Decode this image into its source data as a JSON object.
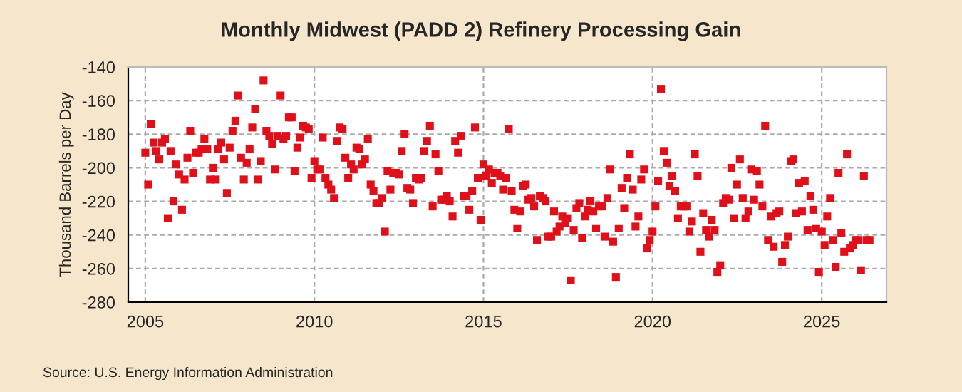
{
  "chart_data": {
    "type": "scatter",
    "title": "Monthly Midwest (PADD 2) Refinery Processing Gain",
    "ylabel": "Thousand Barrels per Day",
    "annotations": [
      "Source: U.S. Energy Information Administration"
    ],
    "x": [
      "2005-01",
      "2005-02",
      "2005-03",
      "2005-04",
      "2005-05",
      "2005-06",
      "2005-07",
      "2005-08",
      "2005-09",
      "2005-10",
      "2005-11",
      "2005-12",
      "2006-01",
      "2006-02",
      "2006-03",
      "2006-04",
      "2006-05",
      "2006-06",
      "2006-07",
      "2006-08",
      "2006-09",
      "2006-10",
      "2006-11",
      "2006-12",
      "2007-01",
      "2007-02",
      "2007-03",
      "2007-04",
      "2007-05",
      "2007-06",
      "2007-07",
      "2007-08",
      "2007-09",
      "2007-10",
      "2007-11",
      "2007-12",
      "2008-01",
      "2008-02",
      "2008-03",
      "2008-04",
      "2008-05",
      "2008-06",
      "2008-07",
      "2008-08",
      "2008-09",
      "2008-10",
      "2008-11",
      "2008-12",
      "2009-01",
      "2009-02",
      "2009-03",
      "2009-04",
      "2009-05",
      "2009-06",
      "2009-07",
      "2009-08",
      "2009-09",
      "2009-10",
      "2009-11",
      "2009-12",
      "2010-01",
      "2010-02",
      "2010-03",
      "2010-04",
      "2010-05",
      "2010-06",
      "2010-07",
      "2010-08",
      "2010-09",
      "2010-10",
      "2010-11",
      "2010-12",
      "2011-01",
      "2011-02",
      "2011-03",
      "2011-04",
      "2011-05",
      "2011-06",
      "2011-07",
      "2011-08",
      "2011-09",
      "2011-10",
      "2011-11",
      "2011-12",
      "2012-01",
      "2012-02",
      "2012-03",
      "2012-04",
      "2012-05",
      "2012-06",
      "2012-07",
      "2012-08",
      "2012-09",
      "2012-10",
      "2012-11",
      "2012-12",
      "2013-01",
      "2013-02",
      "2013-03",
      "2013-04",
      "2013-05",
      "2013-06",
      "2013-07",
      "2013-08",
      "2013-09",
      "2013-10",
      "2013-11",
      "2013-12",
      "2014-01",
      "2014-02",
      "2014-03",
      "2014-04",
      "2014-05",
      "2014-06",
      "2014-07",
      "2014-08",
      "2014-09",
      "2014-10",
      "2014-11",
      "2014-12",
      "2015-01",
      "2015-02",
      "2015-03",
      "2015-04",
      "2015-05",
      "2015-06",
      "2015-07",
      "2015-08",
      "2015-09",
      "2015-10",
      "2015-11",
      "2015-12",
      "2016-01",
      "2016-02",
      "2016-03",
      "2016-04",
      "2016-05",
      "2016-06",
      "2016-07",
      "2016-08",
      "2016-09",
      "2016-10",
      "2016-11",
      "2016-12",
      "2017-01",
      "2017-02",
      "2017-03",
      "2017-04",
      "2017-05",
      "2017-06",
      "2017-07",
      "2017-08",
      "2017-09",
      "2017-10",
      "2017-11",
      "2017-12",
      "2018-01",
      "2018-02",
      "2018-03",
      "2018-04",
      "2018-05",
      "2018-06",
      "2018-07",
      "2018-08",
      "2018-09",
      "2018-10",
      "2018-11",
      "2018-12",
      "2019-01",
      "2019-02",
      "2019-03",
      "2019-04",
      "2019-05",
      "2019-06",
      "2019-07",
      "2019-08",
      "2019-09",
      "2019-10",
      "2019-11",
      "2019-12",
      "2020-01",
      "2020-02",
      "2020-03",
      "2020-04",
      "2020-05",
      "2020-06",
      "2020-07",
      "2020-08",
      "2020-09",
      "2020-10",
      "2020-11",
      "2020-12",
      "2021-01",
      "2021-02",
      "2021-03",
      "2021-04",
      "2021-05",
      "2021-06",
      "2021-07",
      "2021-08",
      "2021-09",
      "2021-10",
      "2021-11",
      "2021-12",
      "2022-01",
      "2022-02",
      "2022-03",
      "2022-04",
      "2022-05",
      "2022-06",
      "2022-07",
      "2022-08",
      "2022-09",
      "2022-10",
      "2022-11",
      "2022-12",
      "2023-01",
      "2023-02",
      "2023-03",
      "2023-04",
      "2023-05",
      "2023-06",
      "2023-07",
      "2023-08",
      "2023-09",
      "2023-10",
      "2023-11",
      "2023-12",
      "2024-01",
      "2024-02",
      "2024-03",
      "2024-04",
      "2024-05",
      "2024-06",
      "2024-07",
      "2024-08",
      "2024-09",
      "2024-10",
      "2024-11",
      "2024-12",
      "2025-01",
      "2025-02",
      "2025-03",
      "2025-04",
      "2025-05",
      "2025-06",
      "2025-07",
      "2025-08",
      "2025-09",
      "2025-10",
      "2025-11",
      "2025-12",
      "2026-01",
      "2026-02",
      "2026-03",
      "2026-04",
      "2026-05",
      "2026-06"
    ],
    "series": [
      {
        "color": "#e0101a",
        "values": [
          -191,
          -210,
          -174,
          -185,
          -190,
          -195,
          -185,
          -183,
          -230,
          -190,
          -220,
          -198,
          -204,
          -225,
          -207,
          -194,
          -178,
          -203,
          -191,
          -191,
          -189,
          -183,
          -189,
          -207,
          -200,
          -207,
          -189,
          -185,
          -195,
          -215,
          -188,
          -178,
          -172,
          -157,
          -194,
          -207,
          -197,
          -189,
          -176,
          -165,
          -207,
          -196,
          -148,
          -178,
          -181,
          -186,
          -201,
          -181,
          -157,
          -183,
          -181,
          -170,
          -170,
          -202,
          -188,
          -182,
          -175,
          -176,
          -177,
          -206,
          -196,
          -201,
          -201,
          -182,
          -206,
          -210,
          -213,
          -218,
          -184,
          -176,
          -177,
          -194,
          -206,
          -198,
          -201,
          -188,
          -189,
          -198,
          -195,
          -183,
          -210,
          -214,
          -221,
          -221,
          -218,
          -238,
          -202,
          -213,
          -203,
          -203,
          -204,
          -190,
          -180,
          -212,
          -213,
          -221,
          -206,
          -207,
          -206,
          -190,
          -184,
          -175,
          -223,
          -192,
          -202,
          -219,
          -219,
          -217,
          -220,
          -229,
          -184,
          -191,
          -181,
          -217,
          -217,
          -225,
          -214,
          -176,
          -206,
          -231,
          -198,
          -205,
          -201,
          -209,
          -203,
          -203,
          -205,
          -213,
          -206,
          -177,
          -214,
          -225,
          -236,
          -226,
          -211,
          -210,
          -219,
          -218,
          -223,
          -243,
          -217,
          -218,
          -220,
          -241,
          -241,
          -226,
          -238,
          -235,
          -229,
          -233,
          -230,
          -267,
          -237,
          -224,
          -221,
          -242,
          -229,
          -225,
          -220,
          -226,
          -236,
          -223,
          -223,
          -241,
          -218,
          -201,
          -244,
          -265,
          -236,
          -212,
          -224,
          -206,
          -192,
          -213,
          -235,
          -229,
          -207,
          -201,
          -248,
          -243,
          -238,
          -223,
          -208,
          -153,
          -190,
          -197,
          -211,
          -205,
          -214,
          -230,
          -223,
          -223,
          -223,
          -238,
          -232,
          -192,
          -205,
          -250,
          -227,
          -237,
          -241,
          -231,
          -237,
          -262,
          -258,
          -221,
          -218,
          -219,
          -200,
          -230,
          -210,
          -195,
          -218,
          -230,
          -226,
          -201,
          -219,
          -202,
          -210,
          -223,
          -175,
          -243,
          -229,
          -247,
          -227,
          -226,
          -256,
          -246,
          -241,
          -196,
          -195,
          -227,
          -209,
          -226,
          -208,
          -237,
          -217,
          -225,
          -236,
          -262,
          -238,
          -246,
          -229,
          -218,
          -243,
          -259,
          -203,
          -239,
          -250,
          -192,
          -248,
          -246,
          -243,
          -243,
          -261,
          -205,
          -243,
          -243
        ]
      }
    ],
    "marker": "square",
    "xlim": [
      "2004-07",
      "2026-12"
    ],
    "xticks": [
      {
        "value": "2005-01",
        "label": "2005"
      },
      {
        "value": "2010-01",
        "label": "2010"
      },
      {
        "value": "2015-01",
        "label": "2015"
      },
      {
        "value": "2020-01",
        "label": "2020"
      },
      {
        "value": "2025-01",
        "label": "2025"
      }
    ],
    "ylim": [
      -280,
      -140
    ],
    "yticks": [
      -140,
      -160,
      -180,
      -200,
      -220,
      -240,
      -260,
      -280
    ],
    "grid": true
  }
}
